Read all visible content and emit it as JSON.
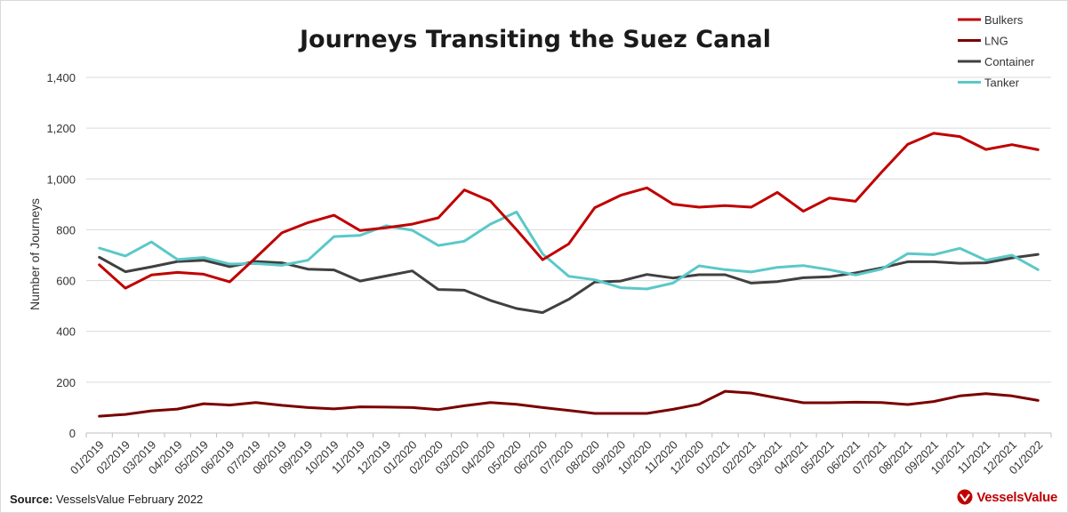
{
  "source": {
    "label": "Source:",
    "text": "VesselsValue February 2022"
  },
  "logo": {
    "text": "VesselsValue",
    "icon": "vesselsvalue-logo-icon",
    "color": "#c00000"
  },
  "chart_data": {
    "type": "line",
    "title": "Journeys Transiting the Suez Canal",
    "ylabel": "Number of Journeys",
    "xlabel": "",
    "ylim": [
      0,
      1400
    ],
    "yticks": [
      0,
      200,
      400,
      600,
      800,
      1000,
      1200,
      1400
    ],
    "ytick_labels": [
      "0",
      "200",
      "400",
      "600",
      "800",
      "1,000",
      "1,200",
      "1,400"
    ],
    "grid": "horizontal",
    "legend_position": "top-right",
    "categories": [
      "01/2019",
      "02/2019",
      "03/2019",
      "04/2019",
      "05/2019",
      "06/2019",
      "07/2019",
      "08/2019",
      "09/2019",
      "10/2019",
      "11/2019",
      "12/2019",
      "01/2020",
      "02/2020",
      "03/2020",
      "04/2020",
      "05/2020",
      "06/2020",
      "07/2020",
      "08/2020",
      "09/2020",
      "10/2020",
      "11/2020",
      "12/2020",
      "01/2021",
      "02/2021",
      "03/2021",
      "04/2021",
      "05/2021",
      "06/2021",
      "07/2021",
      "08/2021",
      "09/2021",
      "10/2021",
      "11/2021",
      "12/2021",
      "01/2022"
    ],
    "series": [
      {
        "name": "Bulkers",
        "color": "#c00000",
        "values": [
          662,
          570,
          622,
          632,
          625,
          595,
          690,
          788,
          828,
          857,
          797,
          808,
          822,
          847,
          957,
          913,
          800,
          682,
          744,
          887,
          936,
          965,
          901,
          889,
          895,
          889,
          947,
          873,
          925,
          912,
          1027,
          1136,
          1180,
          1167,
          1116,
          1135,
          1115
        ]
      },
      {
        "name": "LNG",
        "color": "#7b0000",
        "values": [
          66,
          73,
          87,
          94,
          115,
          110,
          120,
          109,
          100,
          95,
          103,
          102,
          100,
          92,
          107,
          120,
          113,
          100,
          89,
          77,
          77,
          77,
          93,
          113,
          164,
          157,
          138,
          119,
          119,
          121,
          120,
          112,
          124,
          146,
          155,
          146,
          128
        ]
      },
      {
        "name": "Container",
        "color": "#404040",
        "values": [
          692,
          635,
          654,
          675,
          680,
          655,
          675,
          670,
          645,
          642,
          598,
          618,
          638,
          565,
          562,
          522,
          490,
          474,
          526,
          594,
          598,
          624,
          610,
          623,
          623,
          590,
          596,
          611,
          615,
          630,
          650,
          674,
          674,
          668,
          670,
          689,
          703
        ]
      },
      {
        "name": "Tanker",
        "color": "#5bc8c8",
        "values": [
          728,
          697,
          752,
          683,
          691,
          665,
          667,
          660,
          680,
          773,
          778,
          816,
          798,
          738,
          755,
          822,
          870,
          705,
          617,
          603,
          572,
          567,
          590,
          658,
          643,
          634,
          652,
          659,
          643,
          622,
          645,
          706,
          702,
          727,
          680,
          700,
          643
        ]
      }
    ]
  }
}
